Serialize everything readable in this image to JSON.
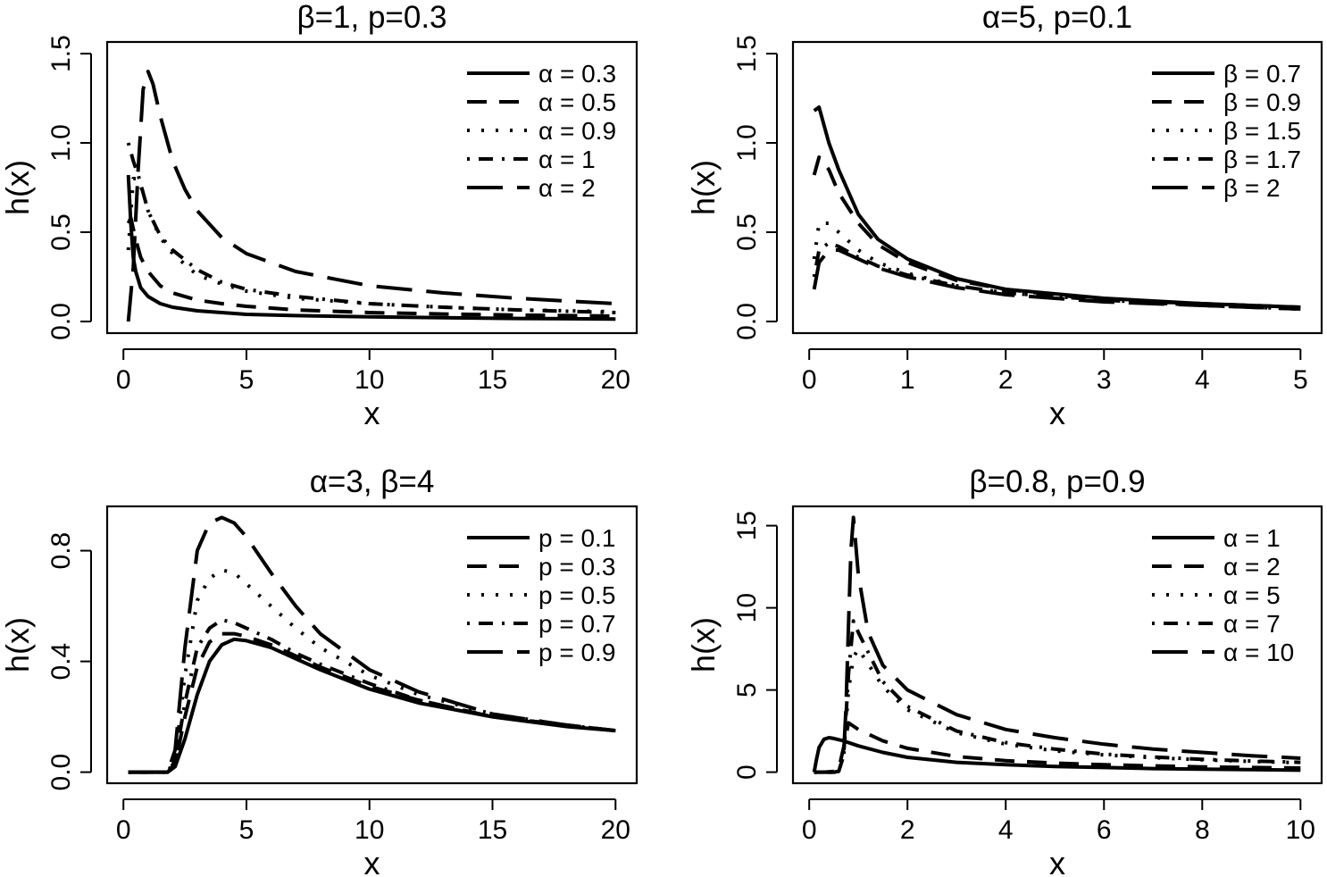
{
  "chart_data": [
    {
      "type": "line",
      "title": "β=1, p=0.3",
      "xlabel": "x",
      "ylabel": "h(x)",
      "xlim": [
        0.2,
        20
      ],
      "ylim": [
        0,
        1.5
      ],
      "xticks": [
        0,
        5,
        10,
        15,
        20
      ],
      "yticks": [
        0.0,
        0.5,
        1.0,
        1.5
      ],
      "ytick_labels": [
        "0.0",
        "0.5",
        "1.0",
        "1.5"
      ],
      "legend_position": "top-right",
      "series": [
        {
          "name": "α = 0.3",
          "style": "solid",
          "x": [
            0.2,
            0.3,
            0.4,
            0.5,
            0.7,
            1,
            1.5,
            2,
            3,
            4,
            5,
            7,
            10,
            13,
            16,
            20
          ],
          "y": [
            0.82,
            0.55,
            0.36,
            0.28,
            0.19,
            0.14,
            0.1,
            0.08,
            0.06,
            0.05,
            0.04,
            0.033,
            0.026,
            0.021,
            0.017,
            0.014
          ]
        },
        {
          "name": "α = 0.5",
          "style": "dashed",
          "x": [
            0.2,
            0.3,
            0.4,
            0.5,
            0.7,
            1,
            1.5,
            2,
            3,
            4,
            5,
            7,
            10,
            13,
            16,
            20
          ],
          "y": [
            0.55,
            0.58,
            0.52,
            0.46,
            0.36,
            0.28,
            0.2,
            0.16,
            0.12,
            0.1,
            0.085,
            0.065,
            0.05,
            0.042,
            0.036,
            0.03
          ]
        },
        {
          "name": "α = 0.9",
          "style": "dotted",
          "x": [
            0.2,
            0.4,
            0.6,
            0.8,
            1,
            1.5,
            2,
            3,
            4,
            5,
            7,
            10,
            13,
            16,
            20
          ],
          "y": [
            0.4,
            0.8,
            0.8,
            0.72,
            0.62,
            0.47,
            0.38,
            0.26,
            0.21,
            0.17,
            0.13,
            0.1,
            0.08,
            0.065,
            0.055
          ]
        },
        {
          "name": "α = 1",
          "style": "dotdash",
          "x": [
            0.2,
            0.4,
            0.6,
            0.8,
            1,
            1.5,
            2,
            3,
            4,
            5,
            7,
            10,
            13,
            16,
            20
          ],
          "y": [
            1.0,
            0.9,
            0.82,
            0.72,
            0.62,
            0.48,
            0.4,
            0.29,
            0.22,
            0.18,
            0.14,
            0.1,
            0.08,
            0.065,
            0.05
          ]
        },
        {
          "name": "α = 2",
          "style": "longdash",
          "x": [
            0.2,
            0.4,
            0.6,
            0.8,
            1,
            1.2,
            1.5,
            2,
            2.5,
            3,
            4,
            5,
            7,
            10,
            13,
            16,
            20
          ],
          "y": [
            0.0,
            0.3,
            0.85,
            1.3,
            1.4,
            1.33,
            1.15,
            0.9,
            0.74,
            0.62,
            0.47,
            0.38,
            0.28,
            0.2,
            0.16,
            0.13,
            0.1
          ]
        }
      ]
    },
    {
      "type": "line",
      "title": "α=5, p=0.1",
      "xlabel": "x",
      "ylabel": "h(x)",
      "xlim": [
        0.05,
        5
      ],
      "ylim": [
        0,
        1.5
      ],
      "xticks": [
        0,
        1,
        2,
        3,
        4,
        5
      ],
      "yticks": [
        0.0,
        0.5,
        1.0,
        1.5
      ],
      "ytick_labels": [
        "0.0",
        "0.5",
        "1.0",
        "1.5"
      ],
      "legend_position": "top-right",
      "series": [
        {
          "name": "β = 0.7",
          "style": "solid",
          "x": [
            0.05,
            0.1,
            0.2,
            0.3,
            0.5,
            0.7,
            1,
            1.5,
            2,
            3,
            4,
            5
          ],
          "y": [
            1.18,
            1.2,
            1.0,
            0.85,
            0.6,
            0.46,
            0.35,
            0.24,
            0.18,
            0.13,
            0.1,
            0.08
          ]
        },
        {
          "name": "β = 0.9",
          "style": "dashed",
          "x": [
            0.05,
            0.1,
            0.2,
            0.3,
            0.5,
            0.7,
            1,
            1.5,
            2,
            3,
            4,
            5
          ],
          "y": [
            0.82,
            0.92,
            0.85,
            0.72,
            0.55,
            0.43,
            0.33,
            0.23,
            0.18,
            0.12,
            0.1,
            0.08
          ]
        },
        {
          "name": "β = 1.5",
          "style": "dotted",
          "x": [
            0.05,
            0.1,
            0.2,
            0.3,
            0.5,
            0.7,
            1,
            1.5,
            2,
            3,
            4,
            5
          ],
          "y": [
            0.35,
            0.55,
            0.55,
            0.5,
            0.4,
            0.33,
            0.27,
            0.2,
            0.16,
            0.12,
            0.09,
            0.07
          ]
        },
        {
          "name": "β = 1.7",
          "style": "dotdash",
          "x": [
            0.05,
            0.1,
            0.2,
            0.3,
            0.5,
            0.7,
            1,
            1.5,
            2,
            3,
            4,
            5
          ],
          "y": [
            0.25,
            0.4,
            0.44,
            0.42,
            0.36,
            0.31,
            0.26,
            0.2,
            0.16,
            0.12,
            0.09,
            0.07
          ]
        },
        {
          "name": "β = 2",
          "style": "longdash",
          "x": [
            0.05,
            0.1,
            0.2,
            0.3,
            0.5,
            0.7,
            1,
            1.5,
            2,
            3,
            4,
            5
          ],
          "y": [
            0.18,
            0.33,
            0.4,
            0.4,
            0.35,
            0.3,
            0.25,
            0.19,
            0.15,
            0.11,
            0.09,
            0.07
          ]
        }
      ]
    },
    {
      "type": "line",
      "title": "α=3, β=4",
      "xlabel": "x",
      "ylabel": "h(x)",
      "xlim": [
        0.2,
        20
      ],
      "ylim": [
        0,
        0.92
      ],
      "xticks": [
        0,
        5,
        10,
        15,
        20
      ],
      "yticks": [
        0.0,
        0.4,
        0.8
      ],
      "ytick_labels": [
        "0.0",
        "0.4",
        "0.8"
      ],
      "legend_position": "top-right",
      "series": [
        {
          "name": "p = 0.1",
          "style": "solid",
          "x": [
            0.2,
            1,
            1.8,
            2.1,
            2.5,
            3,
            3.5,
            4,
            4.5,
            5,
            6,
            7,
            8,
            10,
            12,
            15,
            18,
            20
          ],
          "y": [
            0,
            0,
            0,
            0.02,
            0.12,
            0.28,
            0.4,
            0.46,
            0.48,
            0.475,
            0.45,
            0.41,
            0.37,
            0.3,
            0.25,
            0.2,
            0.165,
            0.15
          ]
        },
        {
          "name": "p = 0.3",
          "style": "dashed",
          "x": [
            0.2,
            1,
            1.8,
            2.1,
            2.5,
            3,
            3.5,
            4,
            4.5,
            5,
            6,
            7,
            8,
            10,
            12,
            15,
            18,
            20
          ],
          "y": [
            0,
            0,
            0,
            0.03,
            0.2,
            0.38,
            0.47,
            0.5,
            0.5,
            0.49,
            0.46,
            0.42,
            0.38,
            0.31,
            0.26,
            0.2,
            0.17,
            0.15
          ]
        },
        {
          "name": "p = 0.5",
          "style": "dotted",
          "x": [
            0.2,
            1,
            1.8,
            2.1,
            2.5,
            3,
            3.5,
            4,
            4.5,
            5,
            6,
            7,
            8,
            10,
            12,
            15,
            18,
            20
          ],
          "y": [
            0,
            0,
            0,
            0.05,
            0.35,
            0.62,
            0.7,
            0.73,
            0.72,
            0.68,
            0.6,
            0.52,
            0.45,
            0.35,
            0.28,
            0.21,
            0.17,
            0.15
          ]
        },
        {
          "name": "p = 0.7",
          "style": "dotdash",
          "x": [
            0.2,
            1,
            1.8,
            2.1,
            2.5,
            3,
            3.5,
            4,
            4.5,
            5,
            6,
            7,
            8,
            10,
            12,
            15,
            18,
            20
          ],
          "y": [
            0,
            0,
            0,
            0.04,
            0.25,
            0.45,
            0.52,
            0.55,
            0.54,
            0.52,
            0.48,
            0.43,
            0.39,
            0.32,
            0.26,
            0.2,
            0.17,
            0.15
          ]
        },
        {
          "name": "p = 0.9",
          "style": "longdash",
          "x": [
            0.2,
            1,
            1.8,
            2.1,
            2.5,
            3,
            3.5,
            4,
            4.5,
            5,
            6,
            7,
            8,
            10,
            12,
            15,
            18,
            20
          ],
          "y": [
            0,
            0,
            0,
            0.08,
            0.45,
            0.8,
            0.9,
            0.92,
            0.9,
            0.85,
            0.72,
            0.6,
            0.5,
            0.37,
            0.29,
            0.21,
            0.17,
            0.15
          ]
        }
      ]
    },
    {
      "type": "line",
      "title": "β=0.8, p=0.9",
      "xlabel": "x",
      "ylabel": "h(x)",
      "xlim": [
        0.1,
        10
      ],
      "ylim": [
        0,
        15.5
      ],
      "xticks": [
        0,
        2,
        4,
        6,
        8,
        10
      ],
      "yticks": [
        0,
        5,
        10,
        15
      ],
      "ytick_labels": [
        "0",
        "5",
        "10",
        "15"
      ],
      "legend_position": "top-right",
      "series": [
        {
          "name": "α = 1",
          "style": "solid",
          "x": [
            0.1,
            0.15,
            0.2,
            0.3,
            0.4,
            0.5,
            0.7,
            1,
            1.5,
            2,
            3,
            4,
            5,
            6,
            7,
            8,
            9,
            10
          ],
          "y": [
            0,
            0.8,
            1.5,
            2.0,
            2.1,
            2.05,
            1.9,
            1.6,
            1.2,
            0.9,
            0.6,
            0.45,
            0.35,
            0.28,
            0.22,
            0.18,
            0.15,
            0.12
          ]
        },
        {
          "name": "α = 2",
          "style": "dashed",
          "x": [
            0.1,
            0.3,
            0.5,
            0.6,
            0.7,
            0.8,
            1,
            1.5,
            2,
            3,
            4,
            5,
            6,
            7,
            8,
            9,
            10
          ],
          "y": [
            0,
            0,
            0.05,
            0.2,
            1.5,
            3.0,
            2.6,
            1.9,
            1.45,
            0.95,
            0.7,
            0.55,
            0.45,
            0.38,
            0.32,
            0.28,
            0.25
          ]
        },
        {
          "name": "α = 5",
          "style": "dotted",
          "x": [
            0.1,
            0.5,
            0.6,
            0.7,
            0.8,
            0.9,
            1,
            1.5,
            2,
            3,
            4,
            5,
            6,
            7,
            8,
            9,
            10
          ],
          "y": [
            0,
            0,
            0.05,
            1.0,
            5.0,
            7.0,
            7.5,
            5.2,
            3.8,
            2.4,
            1.7,
            1.3,
            1.05,
            0.88,
            0.75,
            0.65,
            0.57
          ]
        },
        {
          "name": "α = 7",
          "style": "dotdash",
          "x": [
            0.1,
            0.5,
            0.6,
            0.7,
            0.8,
            0.9,
            1,
            1.5,
            2,
            3,
            4,
            5,
            6,
            7,
            8,
            9,
            10
          ],
          "y": [
            0,
            0,
            0.05,
            1.0,
            6.0,
            9.2,
            8.5,
            5.5,
            4.0,
            2.5,
            1.8,
            1.4,
            1.1,
            0.92,
            0.78,
            0.68,
            0.6
          ]
        },
        {
          "name": "α = 10",
          "style": "longdash",
          "x": [
            0.1,
            0.5,
            0.6,
            0.7,
            0.75,
            0.8,
            0.85,
            0.9,
            1,
            1.2,
            1.5,
            2,
            3,
            4,
            5,
            6,
            7,
            8,
            9,
            10
          ],
          "y": [
            0,
            0,
            0.05,
            1.0,
            4.0,
            9.0,
            13.5,
            15.5,
            12.0,
            8.5,
            6.5,
            5.0,
            3.5,
            2.6,
            2.1,
            1.7,
            1.4,
            1.2,
            1.0,
            0.85
          ]
        }
      ]
    }
  ]
}
